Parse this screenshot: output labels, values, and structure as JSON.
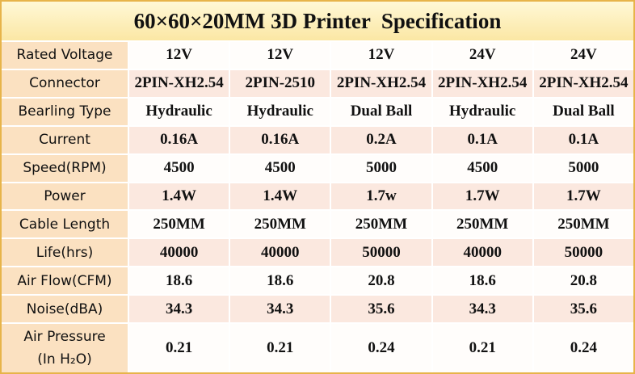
{
  "title": "60×60×20MM 3D Printer  Specification",
  "table": {
    "rows": [
      {
        "label": "Rated Voltage",
        "cells": [
          "12V",
          "12V",
          "12V",
          "24V",
          "24V"
        ]
      },
      {
        "label": "Connector",
        "cells": [
          "2PIN-XH2.54",
          "2PIN-2510",
          "2PIN-XH2.54",
          "2PIN-XH2.54",
          "2PIN-XH2.54"
        ]
      },
      {
        "label": "Bearling Type",
        "cells": [
          "Hydraulic",
          "Hydraulic",
          "Dual Ball",
          "Hydraulic",
          "Dual Ball"
        ]
      },
      {
        "label": "Current",
        "cells": [
          "0.16A",
          "0.16A",
          "0.2A",
          "0.1A",
          "0.1A"
        ]
      },
      {
        "label": "Speed(RPM)",
        "cells": [
          "4500",
          "4500",
          "5000",
          "4500",
          "5000"
        ]
      },
      {
        "label": "Power",
        "cells": [
          "1.4W",
          "1.4W",
          "1.7w",
          "1.7W",
          "1.7W"
        ]
      },
      {
        "label": "Cable Length",
        "cells": [
          "250MM",
          "250MM",
          "250MM",
          "250MM",
          "250MM"
        ]
      },
      {
        "label": "Life(hrs)",
        "cells": [
          "40000",
          "40000",
          "50000",
          "40000",
          "50000"
        ]
      },
      {
        "label": "Air Flow(CFM)",
        "cells": [
          "18.6",
          "18.6",
          "20.8",
          "18.6",
          "20.8"
        ]
      },
      {
        "label": "Noise(dBA)",
        "cells": [
          "34.3",
          "34.3",
          "35.6",
          "34.3",
          "35.6"
        ]
      },
      {
        "label": [
          "Air Pressure",
          "(In H₂O)"
        ],
        "cells": [
          "0.21",
          "0.21",
          "0.24",
          "0.21",
          "0.24"
        ]
      }
    ]
  }
}
